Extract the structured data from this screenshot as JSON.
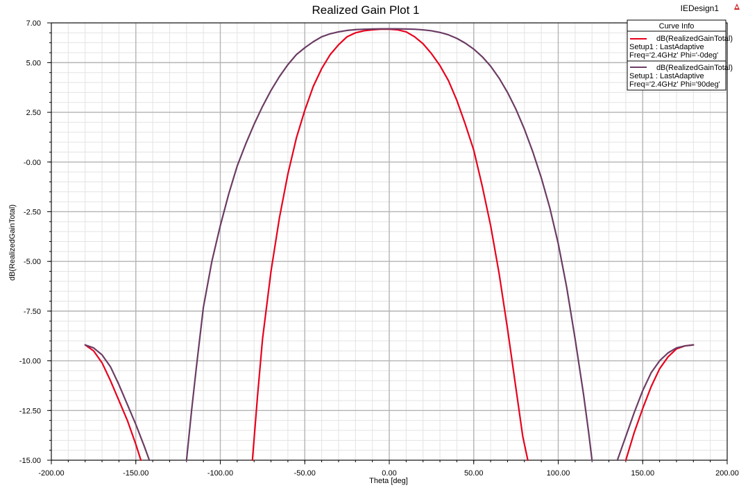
{
  "chart_data": {
    "type": "line",
    "title": "Realized Gain Plot 1",
    "design_name": "IEDesign1",
    "xlabel": "Theta [deg]",
    "ylabel": "dB(RealizedGainTotal)",
    "xlim": [
      -200,
      200
    ],
    "ylim": [
      -15,
      7
    ],
    "x_ticks": [
      -200,
      -150,
      -100,
      -50,
      0,
      50,
      100,
      150,
      200
    ],
    "x_tick_labels": [
      "-200.00",
      "-150.00",
      "-100.00",
      "-50.00",
      "0.00",
      "50.00",
      "100.00",
      "150.00",
      "200.00"
    ],
    "y_ticks": [
      7,
      5,
      2.5,
      0,
      -2.5,
      -5,
      -7.5,
      -10,
      -12.5,
      -15
    ],
    "y_tick_labels": [
      "7.00",
      "5.00",
      "2.50",
      "-0.00",
      "-2.50",
      "-5.00",
      "-7.50",
      "-10.00",
      "-12.50",
      "-15.00"
    ],
    "grid": true,
    "legend": {
      "title": "Curve Info",
      "position": "top-right"
    },
    "series": [
      {
        "name": "dB(RealizedGainTotal)",
        "setup": "Setup1 : LastAdaptive",
        "params": "Freq='2.4GHz' Phi='-0deg'",
        "color": "#e8001c",
        "segments": [
          [
            [
              -180,
              -9.2
            ],
            [
              -175,
              -9.5
            ],
            [
              -170,
              -10.1
            ],
            [
              -165,
              -11.0
            ],
            [
              -160,
              -12.0
            ],
            [
              -155,
              -13.0
            ],
            [
              -150,
              -14.2
            ],
            [
              -147,
              -15.0
            ]
          ],
          [
            [
              -81,
              -15.0
            ],
            [
              -78,
              -11.8
            ],
            [
              -75,
              -8.9
            ],
            [
              -70,
              -5.5
            ],
            [
              -65,
              -2.8
            ],
            [
              -60,
              -0.6
            ],
            [
              -55,
              1.2
            ],
            [
              -50,
              2.6
            ],
            [
              -45,
              3.8
            ],
            [
              -40,
              4.7
            ],
            [
              -35,
              5.4
            ],
            [
              -30,
              5.9
            ],
            [
              -25,
              6.3
            ],
            [
              -20,
              6.5
            ],
            [
              -15,
              6.6
            ],
            [
              -10,
              6.65
            ],
            [
              -5,
              6.68
            ],
            [
              0,
              6.68
            ],
            [
              5,
              6.65
            ],
            [
              10,
              6.55
            ],
            [
              15,
              6.3
            ],
            [
              20,
              5.95
            ],
            [
              25,
              5.45
            ],
            [
              30,
              4.85
            ],
            [
              35,
              4.1
            ],
            [
              40,
              3.1
            ],
            [
              45,
              1.9
            ],
            [
              50,
              0.6
            ],
            [
              55,
              -1.2
            ],
            [
              60,
              -3.2
            ],
            [
              65,
              -5.6
            ],
            [
              70,
              -8.4
            ],
            [
              75,
              -11.4
            ],
            [
              79,
              -13.8
            ],
            [
              82,
              -15.0
            ]
          ],
          [
            [
              140,
              -15.0
            ],
            [
              145,
              -13.6
            ],
            [
              150,
              -12.4
            ],
            [
              155,
              -11.3
            ],
            [
              160,
              -10.4
            ],
            [
              165,
              -9.8
            ],
            [
              170,
              -9.4
            ],
            [
              175,
              -9.25
            ],
            [
              180,
              -9.2
            ]
          ]
        ]
      },
      {
        "name": "dB(RealizedGainTotal)",
        "setup": "Setup1 : LastAdaptive",
        "params": "Freq='2.4GHz' Phi='90deg'",
        "color": "#6b3c64",
        "segments": [
          [
            [
              -180,
              -9.2
            ],
            [
              -175,
              -9.35
            ],
            [
              -170,
              -9.7
            ],
            [
              -165,
              -10.3
            ],
            [
              -160,
              -11.2
            ],
            [
              -155,
              -12.2
            ],
            [
              -150,
              -13.2
            ],
            [
              -145,
              -14.3
            ],
            [
              -142,
              -15.0
            ]
          ],
          [
            [
              -120,
              -15.0
            ],
            [
              -117,
              -12.5
            ],
            [
              -114,
              -10.2
            ],
            [
              -110,
              -7.3
            ],
            [
              -105,
              -5.0
            ],
            [
              -100,
              -3.2
            ],
            [
              -95,
              -1.6
            ],
            [
              -90,
              -0.2
            ],
            [
              -85,
              0.9
            ],
            [
              -80,
              1.9
            ],
            [
              -75,
              2.8
            ],
            [
              -70,
              3.6
            ],
            [
              -65,
              4.3
            ],
            [
              -60,
              4.9
            ],
            [
              -55,
              5.4
            ],
            [
              -50,
              5.75
            ],
            [
              -45,
              6.05
            ],
            [
              -40,
              6.3
            ],
            [
              -35,
              6.45
            ],
            [
              -30,
              6.55
            ],
            [
              -25,
              6.62
            ],
            [
              -20,
              6.66
            ],
            [
              -15,
              6.68
            ],
            [
              -10,
              6.69
            ],
            [
              -5,
              6.7
            ],
            [
              0,
              6.7
            ],
            [
              5,
              6.7
            ],
            [
              10,
              6.69
            ],
            [
              15,
              6.68
            ],
            [
              20,
              6.65
            ],
            [
              25,
              6.6
            ],
            [
              30,
              6.52
            ],
            [
              35,
              6.4
            ],
            [
              40,
              6.22
            ],
            [
              45,
              5.98
            ],
            [
              50,
              5.68
            ],
            [
              55,
              5.3
            ],
            [
              60,
              4.82
            ],
            [
              65,
              4.22
            ],
            [
              70,
              3.5
            ],
            [
              75,
              2.65
            ],
            [
              80,
              1.65
            ],
            [
              85,
              0.5
            ],
            [
              90,
              -0.8
            ],
            [
              95,
              -2.3
            ],
            [
              100,
              -4.1
            ],
            [
              105,
              -6.3
            ],
            [
              110,
              -8.9
            ],
            [
              115,
              -11.7
            ],
            [
              118,
              -13.6
            ],
            [
              120,
              -15.0
            ]
          ],
          [
            [
              135,
              -15.0
            ],
            [
              140,
              -13.8
            ],
            [
              145,
              -12.6
            ],
            [
              150,
              -11.5
            ],
            [
              155,
              -10.6
            ],
            [
              160,
              -10.0
            ],
            [
              165,
              -9.6
            ],
            [
              170,
              -9.35
            ],
            [
              175,
              -9.25
            ],
            [
              180,
              -9.2
            ]
          ]
        ]
      }
    ]
  }
}
